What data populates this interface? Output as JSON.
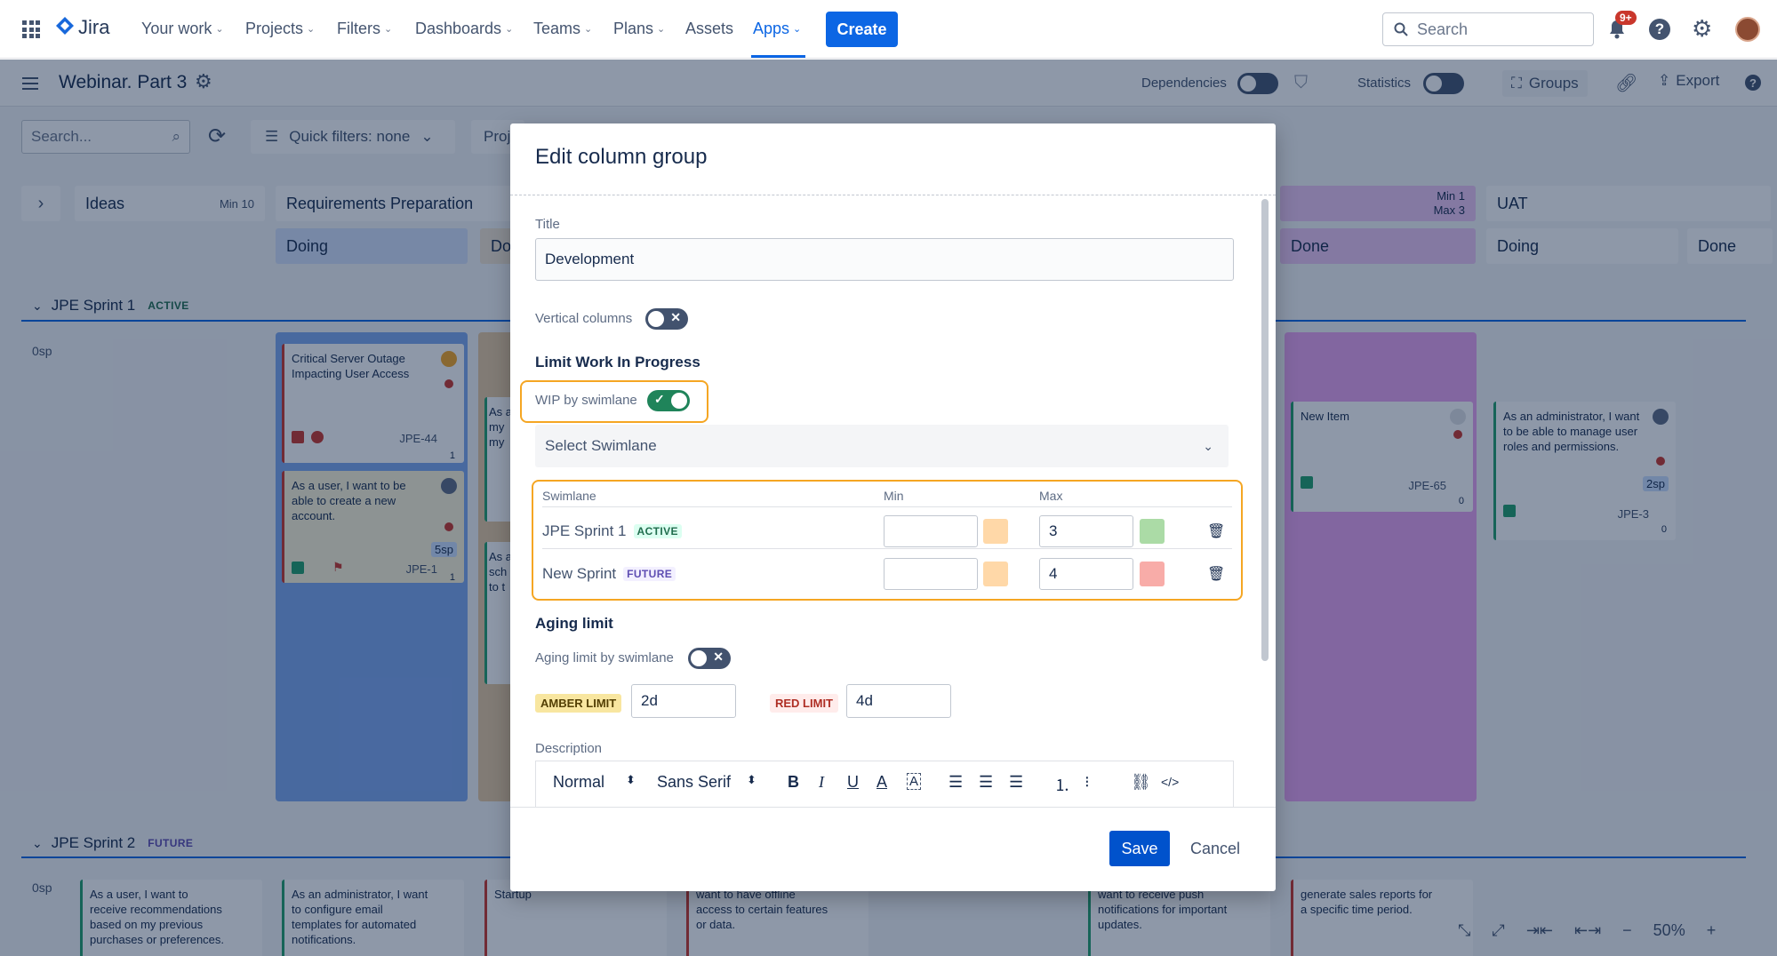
{
  "topnav": {
    "logo_text": "Jira",
    "items": [
      "Your work",
      "Projects",
      "Filters",
      "Dashboards",
      "Teams",
      "Plans",
      "Assets",
      "Apps"
    ],
    "create_label": "Create",
    "search_placeholder": "Search",
    "notification_badge": "9+",
    "active_item": "Apps"
  },
  "board": {
    "title": "Webinar. Part 3",
    "dependencies_label": "Dependencies",
    "statistics_label": "Statistics",
    "groups_label": "Groups",
    "export_label": "Export",
    "search_placeholder": "Search...",
    "quick_filters_label": "Quick filters: none",
    "proj_label": "Proj",
    "columns": {
      "ideas": "Ideas",
      "ideas_min": "Min 10",
      "requirements": "Requirements Preparation",
      "doing1": "Doing",
      "done_partial": "Do",
      "limit_min": "Min 1",
      "limit_max": "Max 3",
      "done_dev": "Done",
      "uat": "UAT",
      "uat_doing": "Doing",
      "uat_done": "Done"
    },
    "sprint1": {
      "name": "JPE Sprint 1",
      "status": "ACTIVE",
      "points": "0sp"
    },
    "sprint2": {
      "name": "JPE Sprint 2",
      "status": "FUTURE",
      "points": "0sp"
    },
    "cards": {
      "c1_text": "Critical Server Outage Impacting User Access",
      "c1_key": "JPE-44",
      "c1_count": "1",
      "c2_text": "As a user, I want to be able to create a new account.",
      "c2_key": "JPE-1",
      "c2_sp": "5sp",
      "c2_count": "1",
      "c3_text": "New Item",
      "c3_key": "JPE-65",
      "c3_count": "0",
      "c4_text": "As an administrator, I want to be able to manage user roles and permissions.",
      "c4_key": "JPE-3",
      "c4_sp": "2sp",
      "c4_count": "0",
      "partial1": "As a my my",
      "partial2": "As a sch to t",
      "r2c1": "As a user, I want to receive recommendations based on my previous purchases or preferences.",
      "r2c2": "As an administrator, I want to configure email templates for automated notifications.",
      "r2c3": "Startup",
      "r2c4": "want to have offline access to certain features or data.",
      "r2c5": "want to receive push notifications for important updates.",
      "r2c6": "generate sales reports for a specific time period."
    },
    "zoom": "50%"
  },
  "modal": {
    "title": "Edit column group",
    "title_label": "Title",
    "title_value": "Development",
    "vertical_columns_label": "Vertical columns",
    "wip_heading": "Limit Work In Progress",
    "wip_by_swimlane_label": "WIP by swimlane",
    "select_swimlane_placeholder": "Select Swimlane",
    "table": {
      "headers": [
        "Swimlane",
        "Min",
        "Max"
      ],
      "rows": [
        {
          "name": "JPE Sprint 1",
          "status": "ACTIVE",
          "min": "",
          "max": "3",
          "max_color": "#abdba6"
        },
        {
          "name": "New Sprint",
          "status": "FUTURE",
          "min": "",
          "max": "4",
          "max_color": "#f8aca8"
        }
      ]
    },
    "aging_heading": "Aging limit",
    "aging_by_swimlane_label": "Aging limit by swimlane",
    "amber_label": "AMBER LIMIT",
    "amber_value": "2d",
    "red_label": "RED LIMIT",
    "red_value": "4d",
    "description_label": "Description",
    "editor": {
      "format": "Normal",
      "font": "Sans Serif"
    },
    "save_label": "Save",
    "cancel_label": "Cancel"
  },
  "colors": {
    "accent": "#0c66e4",
    "highlight_orange": "#f5a623",
    "min_swatch": "#ffd8a8",
    "lane_blue": "#7fa9ef",
    "lane_purple": "#e9a3f0"
  }
}
